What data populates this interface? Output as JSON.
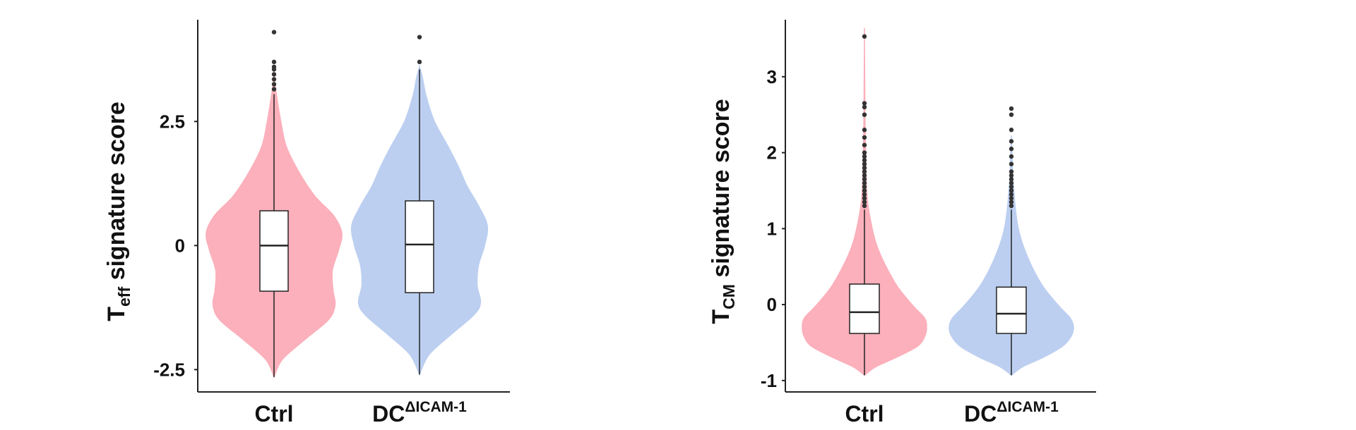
{
  "colors": {
    "ctrl": "#fbb0bb",
    "dc": "#bccff0",
    "axis": "#222222",
    "outlier": "#333333"
  },
  "chart_data": [
    {
      "type": "violin",
      "ylabel": {
        "main": "T",
        "sub": "eff",
        "rest": " signature score"
      },
      "yticks": [
        {
          "value": 2.5,
          "label": "2.5"
        },
        {
          "value": 0,
          "label": "0"
        },
        {
          "value": -2.5,
          "label": "-2.5"
        }
      ],
      "ylim": [
        -2.95,
        4.55
      ],
      "categories": [
        {
          "label": "Ctrl",
          "sup": ""
        },
        {
          "label": "DC",
          "sup": "ΔICAM-1"
        }
      ],
      "series": [
        {
          "color_key": "ctrl",
          "box": {
            "q1": -0.92,
            "median": 0.0,
            "q3": 0.7,
            "whisker_low": -2.65,
            "whisker_high": 3.05
          },
          "outliers": [
            3.15,
            3.25,
            3.35,
            3.45,
            3.55,
            3.6,
            3.7,
            4.3
          ],
          "density": [
            [
              -2.65,
              0.0
            ],
            [
              -2.3,
              0.12
            ],
            [
              -1.9,
              0.45
            ],
            [
              -1.5,
              0.8
            ],
            [
              -1.2,
              0.9
            ],
            [
              -0.9,
              0.87
            ],
            [
              -0.5,
              0.86
            ],
            [
              -0.1,
              0.95
            ],
            [
              0.25,
              1.0
            ],
            [
              0.6,
              0.88
            ],
            [
              1.0,
              0.6
            ],
            [
              1.5,
              0.36
            ],
            [
              2.0,
              0.18
            ],
            [
              2.5,
              0.1
            ],
            [
              3.0,
              0.04
            ],
            [
              3.3,
              0.01
            ],
            [
              3.5,
              0.0
            ]
          ]
        },
        {
          "color_key": "dc",
          "box": {
            "q1": -0.95,
            "median": 0.02,
            "q3": 0.9,
            "whisker_low": -2.6,
            "whisker_high": 3.55
          },
          "outliers": [
            3.7,
            4.2
          ],
          "density": [
            [
              -2.6,
              0.0
            ],
            [
              -2.2,
              0.14
            ],
            [
              -1.8,
              0.46
            ],
            [
              -1.4,
              0.8
            ],
            [
              -1.15,
              0.9
            ],
            [
              -0.8,
              0.85
            ],
            [
              -0.4,
              0.87
            ],
            [
              0.0,
              0.96
            ],
            [
              0.4,
              1.0
            ],
            [
              0.8,
              0.87
            ],
            [
              1.2,
              0.7
            ],
            [
              1.6,
              0.57
            ],
            [
              2.0,
              0.42
            ],
            [
              2.5,
              0.22
            ],
            [
              3.0,
              0.1
            ],
            [
              3.4,
              0.04
            ],
            [
              3.6,
              0.0
            ]
          ]
        }
      ]
    },
    {
      "type": "violin",
      "ylabel": {
        "main": "T",
        "sub": "CM",
        "rest": " signature score"
      },
      "yticks": [
        {
          "value": 3,
          "label": "3"
        },
        {
          "value": 2,
          "label": "2"
        },
        {
          "value": 1,
          "label": "1"
        },
        {
          "value": 0,
          "label": "0"
        },
        {
          "value": -1,
          "label": "-1"
        }
      ],
      "ylim": [
        -1.15,
        3.75
      ],
      "categories": [
        {
          "label": "Ctrl",
          "sup": ""
        },
        {
          "label": "DC",
          "sup": "ΔICAM-1"
        }
      ],
      "series": [
        {
          "color_key": "ctrl",
          "box": {
            "q1": -0.38,
            "median": -0.1,
            "q3": 0.27,
            "whisker_low": -0.93,
            "whisker_high": 1.25
          },
          "outliers": [
            1.3,
            1.35,
            1.4,
            1.45,
            1.5,
            1.55,
            1.6,
            1.65,
            1.7,
            1.75,
            1.8,
            1.85,
            1.9,
            1.95,
            2.0,
            2.1,
            2.2,
            2.3,
            2.5,
            2.6,
            2.65,
            3.53
          ],
          "density": [
            [
              -0.93,
              0.0
            ],
            [
              -0.82,
              0.18
            ],
            [
              -0.7,
              0.5
            ],
            [
              -0.55,
              0.85
            ],
            [
              -0.42,
              0.97
            ],
            [
              -0.3,
              1.0
            ],
            [
              -0.18,
              0.97
            ],
            [
              -0.05,
              0.82
            ],
            [
              0.1,
              0.66
            ],
            [
              0.25,
              0.52
            ],
            [
              0.45,
              0.38
            ],
            [
              0.65,
              0.26
            ],
            [
              0.85,
              0.17
            ],
            [
              1.1,
              0.1
            ],
            [
              1.35,
              0.05
            ],
            [
              1.6,
              0.03
            ],
            [
              2.0,
              0.02
            ],
            [
              2.4,
              0.01
            ],
            [
              3.5,
              0.0
            ]
          ]
        },
        {
          "color_key": "dc",
          "box": {
            "q1": -0.38,
            "median": -0.12,
            "q3": 0.23,
            "whisker_low": -0.93,
            "whisker_high": 1.25
          },
          "outliers": [
            1.3,
            1.35,
            1.4,
            1.45,
            1.5,
            1.55,
            1.6,
            1.65,
            1.7,
            1.75,
            1.85,
            1.95,
            2.05,
            2.15,
            2.3,
            2.5,
            2.58
          ],
          "density": [
            [
              -0.93,
              0.0
            ],
            [
              -0.82,
              0.18
            ],
            [
              -0.7,
              0.5
            ],
            [
              -0.55,
              0.82
            ],
            [
              -0.42,
              0.96
            ],
            [
              -0.3,
              1.0
            ],
            [
              -0.18,
              0.95
            ],
            [
              -0.05,
              0.8
            ],
            [
              0.1,
              0.64
            ],
            [
              0.25,
              0.5
            ],
            [
              0.45,
              0.36
            ],
            [
              0.65,
              0.25
            ],
            [
              0.85,
              0.16
            ],
            [
              1.05,
              0.1
            ],
            [
              1.3,
              0.06
            ],
            [
              1.5,
              0.04
            ],
            [
              1.7,
              0.02
            ],
            [
              2.0,
              0.01
            ],
            [
              2.2,
              0.0
            ]
          ]
        }
      ]
    }
  ]
}
